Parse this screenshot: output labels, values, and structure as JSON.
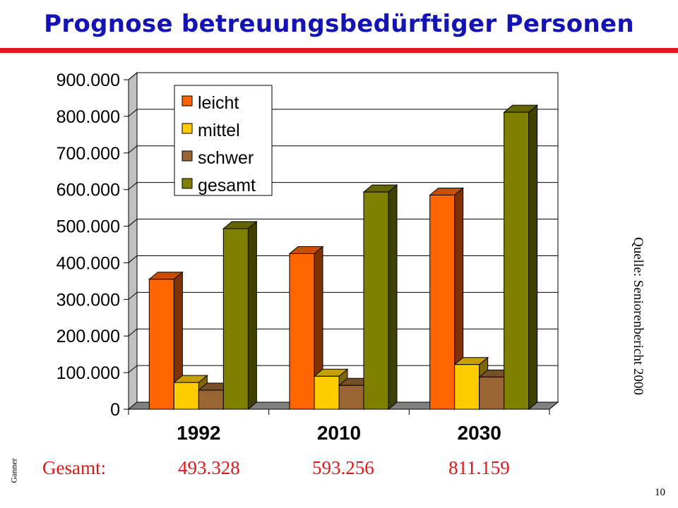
{
  "title": "Prognose betreuungsbedürftiger Personen",
  "source": "Quelle: Seniorenbericht 2000",
  "author": "Ganner",
  "page_number": "10",
  "totals": {
    "label": "Gesamt:",
    "values": [
      "493.328",
      "593.256",
      "811.159"
    ]
  },
  "colors": {
    "title": "#1414b4",
    "rule": "#e01818",
    "leicht": "#ff6600",
    "mittel": "#ffcc00",
    "schwer": "#996633",
    "gesamt": "#808000"
  },
  "chart_data": {
    "type": "bar",
    "style": "3d-clustered-column",
    "categories": [
      "1992",
      "2010",
      "2030"
    ],
    "series": [
      {
        "name": "leicht",
        "values": [
          355000,
          425000,
          585000
        ]
      },
      {
        "name": "mittel",
        "values": [
          73000,
          90000,
          122000
        ]
      },
      {
        "name": "schwer",
        "values": [
          52000,
          65000,
          88000
        ]
      },
      {
        "name": "gesamt",
        "values": [
          493328,
          593256,
          811159
        ]
      }
    ],
    "ylim": [
      0,
      900000
    ],
    "yticks": [
      "0",
      "100.000",
      "200.000",
      "300.000",
      "400.000",
      "500.000",
      "600.000",
      "700.000",
      "800.000",
      "900.000"
    ],
    "grid": true,
    "legend": "top-left"
  }
}
